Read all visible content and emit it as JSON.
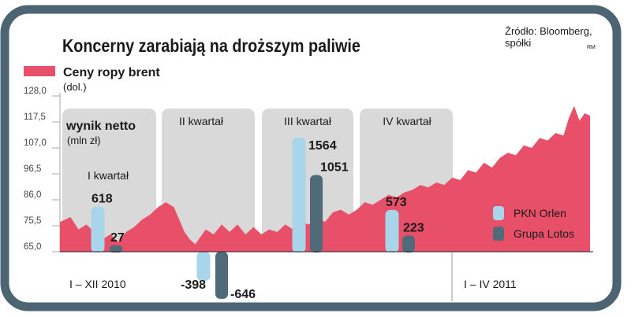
{
  "chart_data": {
    "type": "area",
    "title": "Koncerny zarabiają na droższym paliwie",
    "source_line1": "Źródło: Bloomberg,",
    "source_line2": "spółki",
    "credit": "RM",
    "area_series": {
      "name": "Ceny ropy brent",
      "unit": "(dol.)",
      "color": "#e8506a",
      "ylim": [
        65.0,
        128.0
      ],
      "y_ticks": [
        "128,0",
        "117,5",
        "107,0",
        "96,5",
        "86,0",
        "75,5",
        "65,0"
      ],
      "points": [
        [
          0.0,
          77
        ],
        [
          0.02,
          79
        ],
        [
          0.035,
          74
        ],
        [
          0.05,
          76
        ],
        [
          0.065,
          73
        ],
        [
          0.08,
          70
        ],
        [
          0.095,
          72
        ],
        [
          0.11,
          69
        ],
        [
          0.125,
          73
        ],
        [
          0.14,
          75
        ],
        [
          0.155,
          78
        ],
        [
          0.17,
          80
        ],
        [
          0.185,
          83
        ],
        [
          0.2,
          85
        ],
        [
          0.215,
          83
        ],
        [
          0.225,
          78
        ],
        [
          0.235,
          73
        ],
        [
          0.245,
          70
        ],
        [
          0.255,
          68
        ],
        [
          0.265,
          71
        ],
        [
          0.275,
          74
        ],
        [
          0.29,
          72
        ],
        [
          0.305,
          76
        ],
        [
          0.32,
          73
        ],
        [
          0.335,
          76
        ],
        [
          0.35,
          72
        ],
        [
          0.365,
          75
        ],
        [
          0.38,
          72
        ],
        [
          0.395,
          74
        ],
        [
          0.41,
          73
        ],
        [
          0.425,
          76
        ],
        [
          0.44,
          74
        ],
        [
          0.455,
          77
        ],
        [
          0.47,
          76
        ],
        [
          0.485,
          79
        ],
        [
          0.5,
          77
        ],
        [
          0.515,
          81
        ],
        [
          0.53,
          82
        ],
        [
          0.545,
          80
        ],
        [
          0.56,
          82
        ],
        [
          0.575,
          85
        ],
        [
          0.59,
          84
        ],
        [
          0.605,
          86
        ],
        [
          0.62,
          88
        ],
        [
          0.635,
          87
        ],
        [
          0.65,
          89
        ],
        [
          0.665,
          90
        ],
        [
          0.68,
          92
        ],
        [
          0.695,
          91
        ],
        [
          0.71,
          93
        ],
        [
          0.725,
          92
        ],
        [
          0.74,
          95
        ],
        [
          0.755,
          94
        ],
        [
          0.77,
          98
        ],
        [
          0.785,
          97
        ],
        [
          0.8,
          101
        ],
        [
          0.815,
          99
        ],
        [
          0.83,
          103
        ],
        [
          0.845,
          105
        ],
        [
          0.86,
          104
        ],
        [
          0.875,
          108
        ],
        [
          0.89,
          107
        ],
        [
          0.905,
          111
        ],
        [
          0.92,
          110
        ],
        [
          0.935,
          113
        ],
        [
          0.95,
          112
        ],
        [
          0.96,
          119
        ],
        [
          0.97,
          124
        ],
        [
          0.98,
          118
        ],
        [
          0.99,
          121
        ],
        [
          1.0,
          120
        ]
      ]
    },
    "bar_chart": {
      "heading": "wynik netto",
      "unit": "(mln zł)",
      "quarters": [
        "I kwartał",
        "II kwartał",
        "III kwartał",
        "IV kwartał"
      ],
      "series": [
        {
          "name": "PKN Orlen",
          "color": "#a9d5ea",
          "values": [
            618,
            -398,
            1564,
            573
          ],
          "labels": [
            "618",
            "-398",
            "1564",
            "573"
          ]
        },
        {
          "name": "Grupa Lotos",
          "color": "#4f6a78",
          "values": [
            27,
            -646,
            1051,
            223
          ],
          "labels": [
            "27",
            "-646",
            "1051",
            "223"
          ]
        }
      ]
    },
    "period_labels": [
      "I – XII 2010",
      "I – IV 2011"
    ],
    "colors": {
      "frame": "#4d6573",
      "panel": "#d9d9d9",
      "axis": "#aaaaaa",
      "text": "#1a1a1a"
    }
  }
}
